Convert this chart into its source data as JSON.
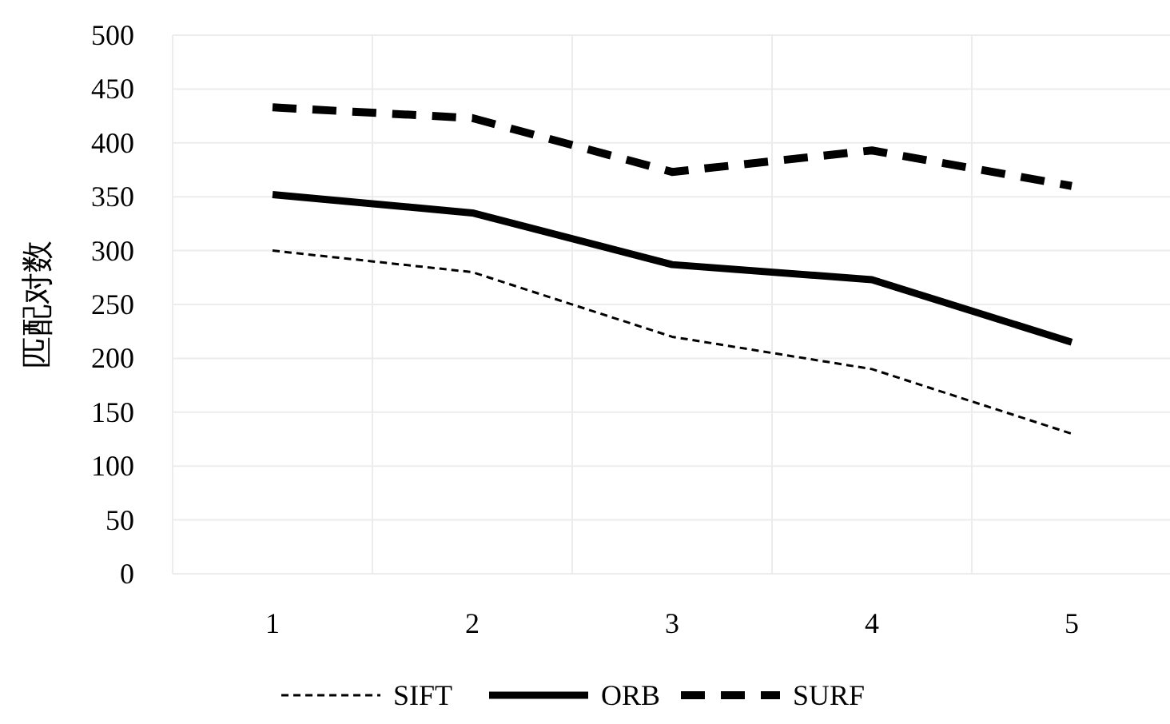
{
  "chart_data": {
    "type": "line",
    "ylabel": "匹配对数",
    "categories": [
      "1",
      "2",
      "3",
      "4",
      "5"
    ],
    "series": [
      {
        "name": "SIFT",
        "color": "#000000",
        "line_style": "dashed",
        "values": [
          300,
          280,
          220,
          190,
          130
        ]
      },
      {
        "name": "ORB",
        "color": "#000000",
        "line_style": "solid",
        "values": [
          352,
          335,
          287,
          273,
          215
        ]
      },
      {
        "name": "SURF",
        "color": "#000000",
        "line_style": "dashed",
        "values": [
          433,
          423,
          373,
          393,
          360
        ]
      }
    ],
    "ylim": [
      0,
      500
    ],
    "yticks": [
      0,
      50,
      100,
      150,
      200,
      250,
      300,
      350,
      400,
      450,
      500
    ],
    "grid": true,
    "legend": "bottom",
    "marker": "none"
  }
}
